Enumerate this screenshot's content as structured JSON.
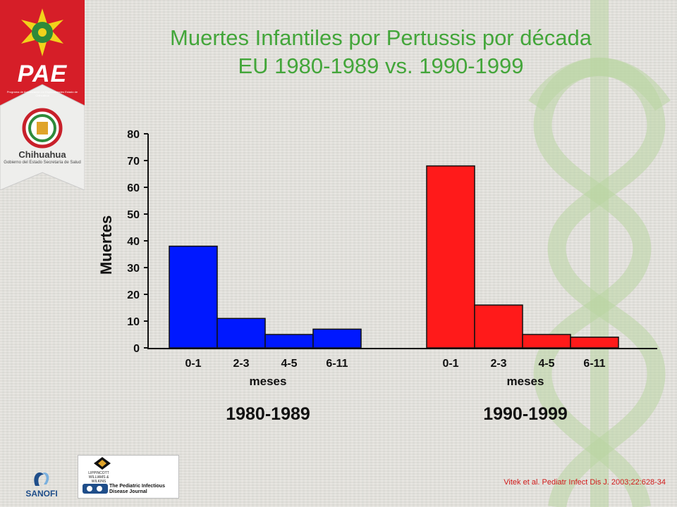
{
  "title": {
    "line1": "Muertes Infantiles por Pertussis por década",
    "line2": "EU 1980-1989 vs. 1990-1999"
  },
  "logos": {
    "pae": "PAE",
    "pae_subtitle": "Programa de Actualización en Especialidades Estado de Chihuahua",
    "chihuahua": "Chihuahua",
    "chihuahua_subtitle": "Gobierno del Estado Secretaría de Salud",
    "sanofi": "SANOFI",
    "lww": "LIPPINCOTT WILLIAMS & WILKINS",
    "journal": "The Pediatric Infectious Disease Journal"
  },
  "citation": "Vitek et al. Pediatr Infect Dis J. 2003;22:628-34",
  "colors": {
    "title_green": "#43a63a",
    "series_1980": "#0018ff",
    "series_1990": "#ff1a1a",
    "banner_red": "#d61e28",
    "citation_red": "#d11a1a"
  },
  "chart_data": {
    "type": "bar",
    "ylabel": "Muertes",
    "ylim": [
      0,
      80
    ],
    "yticks": [
      0,
      10,
      20,
      30,
      40,
      50,
      60,
      70,
      80
    ],
    "grid": false,
    "groups": [
      {
        "name": "1980-1989",
        "xlabel": "meses",
        "color": "#0018ff",
        "categories": [
          "0-1",
          "2-3",
          "4-5",
          "6-11"
        ],
        "values": [
          38,
          11,
          5,
          7
        ]
      },
      {
        "name": "1990-1999",
        "xlabel": "meses",
        "color": "#ff1a1a",
        "categories": [
          "0-1",
          "2-3",
          "4-5",
          "6-11"
        ],
        "values": [
          68,
          16,
          5,
          4
        ]
      }
    ]
  }
}
